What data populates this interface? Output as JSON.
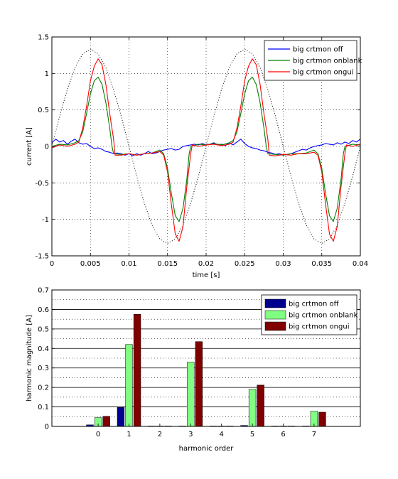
{
  "chart_data": [
    {
      "type": "line",
      "xlabel": "time [s]",
      "ylabel": "current [A]",
      "xlim": [
        0,
        0.04
      ],
      "ylim": [
        -1.5,
        1.5
      ],
      "xticks": [
        0,
        0.005,
        0.01,
        0.015,
        0.02,
        0.025,
        0.03,
        0.035,
        0.04
      ],
      "xtick_labels": [
        "0",
        "0.005",
        "0.01",
        "0.015",
        "0.02",
        "0.025",
        "0.03",
        "0.035",
        "0.04"
      ],
      "yticks": [
        -1.5,
        -1,
        -0.5,
        0,
        0.5,
        1,
        1.5
      ],
      "ytick_labels": [
        "-1.5",
        "-1",
        "-0.5",
        "0",
        "0.5",
        "1",
        "1.5"
      ],
      "grid": true,
      "legend_position": "top-right",
      "series": [
        {
          "name": "big crtmon off",
          "color": "#0000ff",
          "x": [
            0,
            0.0005,
            0.001,
            0.0015,
            0.002,
            0.0025,
            0.003,
            0.0035,
            0.004,
            0.0045,
            0.005,
            0.0055,
            0.006,
            0.0065,
            0.007,
            0.0075,
            0.008,
            0.0085,
            0.009,
            0.0095,
            0.01,
            0.0105,
            0.011,
            0.0115,
            0.012,
            0.0125,
            0.013,
            0.0135,
            0.014,
            0.0145,
            0.015,
            0.0155,
            0.016,
            0.0165,
            0.017,
            0.0175,
            0.018,
            0.0185,
            0.019,
            0.0195,
            0.02,
            0.0205,
            0.021,
            0.0215,
            0.022,
            0.0225,
            0.023,
            0.0235,
            0.024,
            0.0245,
            0.025,
            0.0255,
            0.026,
            0.0265,
            0.027,
            0.0275,
            0.028,
            0.0285,
            0.029,
            0.0295,
            0.03,
            0.0305,
            0.031,
            0.0315,
            0.032,
            0.0325,
            0.033,
            0.0335,
            0.034,
            0.0345,
            0.035,
            0.0355,
            0.036,
            0.0365,
            0.037,
            0.0375,
            0.038,
            0.0385,
            0.039,
            0.0395,
            0.04
          ],
          "y": [
            0.05,
            0.1,
            0.06,
            0.08,
            0.03,
            0.07,
            0.1,
            0.05,
            0.03,
            0.04,
            0.0,
            -0.03,
            -0.02,
            -0.04,
            -0.07,
            -0.08,
            -0.1,
            -0.09,
            -0.1,
            -0.12,
            -0.1,
            -0.13,
            -0.1,
            -0.12,
            -0.1,
            -0.07,
            -0.1,
            -0.09,
            -0.07,
            -0.05,
            -0.04,
            -0.03,
            -0.05,
            -0.04,
            0.0,
            0.01,
            0.02,
            0.03,
            0.02,
            0.04,
            0.02,
            0.03,
            0.05,
            0.02,
            0.03,
            0.01,
            0.05,
            0.02,
            0.06,
            0.1,
            0.04,
            0.0,
            -0.02,
            -0.03,
            -0.05,
            -0.06,
            -0.08,
            -0.09,
            -0.11,
            -0.1,
            -0.12,
            -0.11,
            -0.1,
            -0.08,
            -0.06,
            -0.04,
            -0.05,
            -0.02,
            0.0,
            0.01,
            0.02,
            0.04,
            0.03,
            0.02,
            0.05,
            0.03,
            0.06,
            0.04,
            0.08,
            0.06,
            0.1
          ]
        },
        {
          "name": "big crtmon onblank",
          "color": "#008000",
          "x": [
            0,
            0.001,
            0.002,
            0.003,
            0.0035,
            0.004,
            0.0045,
            0.005,
            0.0055,
            0.006,
            0.0065,
            0.007,
            0.0075,
            0.0078,
            0.008,
            0.009,
            0.01,
            0.011,
            0.012,
            0.013,
            0.014,
            0.0145,
            0.015,
            0.0155,
            0.016,
            0.0165,
            0.017,
            0.0175,
            0.0178,
            0.018,
            0.019,
            0.02,
            0.021,
            0.022,
            0.023,
            0.0235,
            0.024,
            0.0245,
            0.025,
            0.0255,
            0.026,
            0.0265,
            0.027,
            0.0275,
            0.0278,
            0.028,
            0.029,
            0.03,
            0.031,
            0.032,
            0.033,
            0.034,
            0.0345,
            0.035,
            0.0355,
            0.036,
            0.0365,
            0.037,
            0.0375,
            0.0378,
            0.038,
            0.039,
            0.04
          ],
          "y": [
            0.0,
            0.03,
            0.02,
            0.05,
            0.08,
            0.2,
            0.45,
            0.72,
            0.9,
            0.95,
            0.85,
            0.6,
            0.25,
            0.0,
            -0.1,
            -0.11,
            -0.1,
            -0.12,
            -0.1,
            -0.09,
            -0.05,
            -0.1,
            -0.3,
            -0.65,
            -0.95,
            -1.03,
            -0.85,
            -0.45,
            -0.1,
            0.0,
            0.03,
            0.02,
            0.04,
            0.02,
            0.05,
            0.08,
            0.2,
            0.45,
            0.72,
            0.9,
            0.95,
            0.85,
            0.6,
            0.25,
            0.0,
            -0.1,
            -0.11,
            -0.12,
            -0.1,
            -0.1,
            -0.09,
            -0.05,
            -0.1,
            -0.3,
            -0.65,
            -0.95,
            -1.03,
            -0.85,
            -0.45,
            -0.1,
            0.0,
            0.03,
            0.02
          ]
        },
        {
          "name": "big crtmon ongui",
          "color": "#ff0000",
          "x": [
            0,
            0.001,
            0.002,
            0.003,
            0.0035,
            0.004,
            0.0045,
            0.005,
            0.0055,
            0.006,
            0.0065,
            0.007,
            0.0075,
            0.008,
            0.0082,
            0.009,
            0.01,
            0.011,
            0.012,
            0.013,
            0.014,
            0.0145,
            0.015,
            0.0155,
            0.016,
            0.0165,
            0.017,
            0.0175,
            0.018,
            0.0182,
            0.019,
            0.02,
            0.021,
            0.022,
            0.023,
            0.0235,
            0.024,
            0.0245,
            0.025,
            0.0255,
            0.026,
            0.0265,
            0.027,
            0.0275,
            0.028,
            0.0282,
            0.029,
            0.03,
            0.031,
            0.032,
            0.033,
            0.034,
            0.0345,
            0.035,
            0.0355,
            0.036,
            0.0365,
            0.037,
            0.0375,
            0.038,
            0.0382,
            0.039,
            0.04
          ],
          "y": [
            -0.02,
            0.02,
            0.0,
            0.03,
            0.06,
            0.25,
            0.55,
            0.9,
            1.1,
            1.2,
            1.12,
            0.85,
            0.45,
            0.1,
            -0.12,
            -0.12,
            -0.1,
            -0.12,
            -0.1,
            -0.09,
            -0.07,
            -0.12,
            -0.35,
            -0.8,
            -1.2,
            -1.3,
            -1.1,
            -0.55,
            -0.1,
            0.02,
            0.0,
            0.02,
            0.03,
            0.01,
            0.03,
            0.06,
            0.25,
            0.55,
            0.9,
            1.1,
            1.2,
            1.12,
            0.85,
            0.45,
            0.1,
            -0.12,
            -0.13,
            -0.11,
            -0.12,
            -0.1,
            -0.1,
            -0.08,
            -0.12,
            -0.35,
            -0.8,
            -1.2,
            -1.3,
            -1.1,
            -0.55,
            -0.1,
            0.02,
            0.0,
            0.03
          ]
        },
        {
          "name": "",
          "color": "#000000",
          "style": "dotted",
          "x": [
            0,
            0.001,
            0.002,
            0.003,
            0.004,
            0.005,
            0.006,
            0.007,
            0.008,
            0.009,
            0.01,
            0.011,
            0.012,
            0.013,
            0.014,
            0.015,
            0.016,
            0.017,
            0.018,
            0.019,
            0.02,
            0.021,
            0.022,
            0.023,
            0.024,
            0.025,
            0.026,
            0.027,
            0.028,
            0.029,
            0.03,
            0.031,
            0.032,
            0.033,
            0.034,
            0.035,
            0.036,
            0.037,
            0.038,
            0.039,
            0.04
          ],
          "y": [
            0.0,
            0.41,
            0.78,
            1.08,
            1.27,
            1.33,
            1.27,
            1.08,
            0.78,
            0.41,
            0.0,
            -0.41,
            -0.78,
            -1.08,
            -1.27,
            -1.33,
            -1.27,
            -1.08,
            -0.78,
            -0.41,
            0.0,
            0.41,
            0.78,
            1.08,
            1.27,
            1.33,
            1.27,
            1.08,
            0.78,
            0.41,
            0.0,
            -0.41,
            -0.78,
            -1.08,
            -1.27,
            -1.33,
            -1.27,
            -1.08,
            -0.78,
            -0.41,
            0.0
          ]
        }
      ]
    },
    {
      "type": "bar",
      "xlabel": "harmonic order",
      "ylabel": "harmonic magnitude [A]",
      "categories": [
        "0",
        "1",
        "2",
        "3",
        "4",
        "5",
        "6",
        "7"
      ],
      "ylim": [
        0,
        0.7
      ],
      "yticks": [
        0,
        0.1,
        0.2,
        0.3,
        0.4,
        0.5,
        0.6,
        0.7
      ],
      "ytick_labels": [
        "0",
        "0.1",
        "0.2",
        "0.3",
        "0.4",
        "0.5",
        "0.6",
        "0.7"
      ],
      "minor_y_gridlines": [
        0.05,
        0.15,
        0.25,
        0.35,
        0.45,
        0.55,
        0.65
      ],
      "grid": true,
      "legend_position": "top-right",
      "series": [
        {
          "name": "big crtmon off",
          "color": "#00008f",
          "values": [
            0.008,
            0.098,
            0.002,
            0.002,
            0.002,
            0.005,
            0.002,
            0.002
          ]
        },
        {
          "name": "big crtmon onblank",
          "color": "#80ff80",
          "values": [
            0.045,
            0.42,
            0.002,
            0.33,
            0.002,
            0.19,
            0.002,
            0.078
          ]
        },
        {
          "name": "big crtmon ongui",
          "color": "#800000",
          "values": [
            0.052,
            0.575,
            0.002,
            0.435,
            0.002,
            0.212,
            0.002,
            0.073
          ]
        }
      ]
    }
  ]
}
